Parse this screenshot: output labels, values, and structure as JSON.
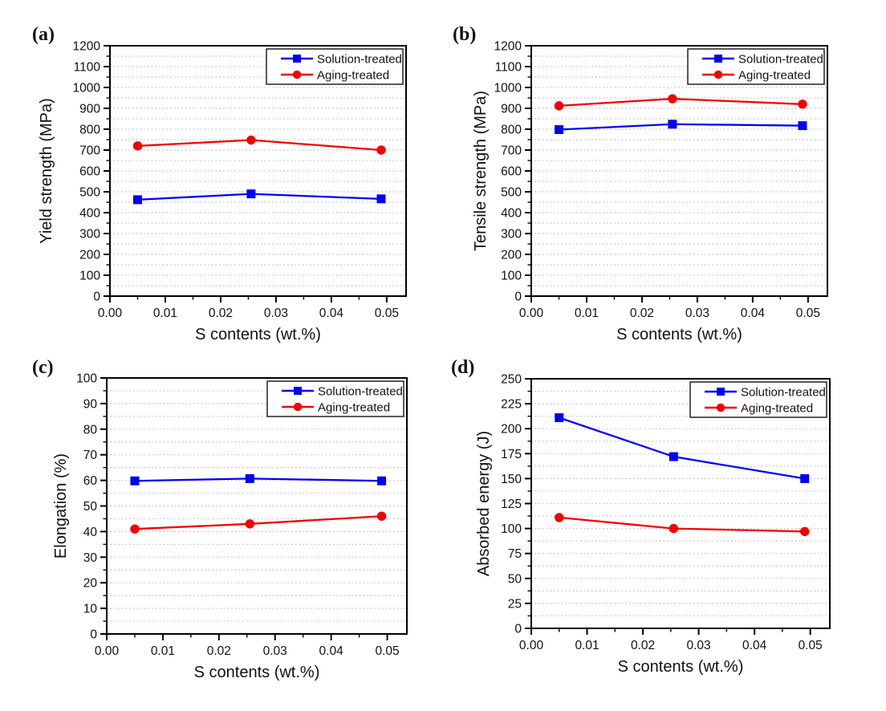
{
  "figure": {
    "background": "#ffffff",
    "series_colors": {
      "solution_treated": "#0000f4",
      "aging_treated": "#f40000"
    },
    "gridline_color": "#bdbdbd",
    "legend_labels": [
      "Solution-treated",
      "Aging-treated"
    ]
  },
  "chart_data": [
    {
      "id": "a",
      "panel_label": "(a)",
      "type": "line",
      "title": "",
      "xlabel": "S contents (wt.%)",
      "ylabel": "Yield strength (MPa)",
      "xlim": [
        0,
        0.0535
      ],
      "ylim": [
        0,
        1200
      ],
      "x_ticks": [
        0,
        0.01,
        0.02,
        0.03,
        0.04,
        0.05
      ],
      "x_tick_labels": [
        "0.00",
        "0.01",
        "0.02",
        "0.03",
        "0.04",
        "0.05"
      ],
      "x_minor_step": 0.005,
      "y_major_step": 100,
      "y_minor_step": 50,
      "grid": "horizontal-dotted",
      "legend_position": "top-right-inside",
      "x": [
        0.005,
        0.0255,
        0.049
      ],
      "series": [
        {
          "name": "Solution-treated",
          "marker": "square",
          "color": "#0000f4",
          "values": [
            462,
            490,
            466
          ]
        },
        {
          "name": "Aging-treated",
          "marker": "circle",
          "color": "#f40000",
          "values": [
            720,
            748,
            700
          ]
        }
      ]
    },
    {
      "id": "b",
      "panel_label": "(b)",
      "type": "line",
      "title": "",
      "xlabel": "S contents (wt.%)",
      "ylabel": "Tensile strength (MPa)",
      "xlim": [
        0,
        0.0535
      ],
      "ylim": [
        0,
        1200
      ],
      "x_ticks": [
        0,
        0.01,
        0.02,
        0.03,
        0.04,
        0.05
      ],
      "x_tick_labels": [
        "0.00",
        "0.01",
        "0.02",
        "0.03",
        "0.04",
        "0.05"
      ],
      "x_minor_step": 0.005,
      "y_major_step": 100,
      "y_minor_step": 50,
      "grid": "horizontal-dotted",
      "legend_position": "top-right-inside",
      "x": [
        0.005,
        0.0255,
        0.049
      ],
      "series": [
        {
          "name": "Solution-treated",
          "marker": "square",
          "color": "#0000f4",
          "values": [
            798,
            824,
            817
          ]
        },
        {
          "name": "Aging-treated",
          "marker": "circle",
          "color": "#f40000",
          "values": [
            912,
            946,
            920
          ]
        }
      ]
    },
    {
      "id": "c",
      "panel_label": "(c)",
      "type": "line",
      "title": "",
      "xlabel": "S contents (wt.%)",
      "ylabel": "Elongation (%)",
      "xlim": [
        0,
        0.0535
      ],
      "ylim": [
        0,
        100
      ],
      "x_ticks": [
        0,
        0.01,
        0.02,
        0.03,
        0.04,
        0.05
      ],
      "x_tick_labels": [
        "0.00",
        "0.01",
        "0.02",
        "0.03",
        "0.04",
        "0.05"
      ],
      "x_minor_step": 0.005,
      "y_major_step": 10,
      "y_minor_step": 5,
      "grid": "horizontal-dotted",
      "legend_position": "top-right-inside",
      "x": [
        0.005,
        0.0255,
        0.049
      ],
      "series": [
        {
          "name": "Solution-treated",
          "marker": "square",
          "color": "#0000f4",
          "values": [
            59.8,
            60.7,
            59.8
          ]
        },
        {
          "name": "Aging-treated",
          "marker": "circle",
          "color": "#f40000",
          "values": [
            41,
            43,
            46
          ]
        }
      ]
    },
    {
      "id": "d",
      "panel_label": "(d)",
      "type": "line",
      "title": "",
      "xlabel": "S contents (wt.%)",
      "ylabel": "Absorbed energy (J)",
      "xlim": [
        0,
        0.0535
      ],
      "ylim": [
        0,
        250
      ],
      "x_ticks": [
        0,
        0.01,
        0.02,
        0.03,
        0.04,
        0.05
      ],
      "x_tick_labels": [
        "0.00",
        "0.01",
        "0.02",
        "0.03",
        "0.04",
        "0.05"
      ],
      "x_minor_step": 0.005,
      "y_major_step": 25,
      "y_minor_step": 12.5,
      "grid": "horizontal-dotted",
      "legend_position": "top-right-inside",
      "x": [
        0.005,
        0.0255,
        0.049
      ],
      "series": [
        {
          "name": "Solution-treated",
          "marker": "square",
          "color": "#0000f4",
          "values": [
            211,
            172,
            150
          ]
        },
        {
          "name": "Aging-treated",
          "marker": "circle",
          "color": "#f40000",
          "values": [
            111,
            100,
            97
          ]
        }
      ]
    }
  ]
}
